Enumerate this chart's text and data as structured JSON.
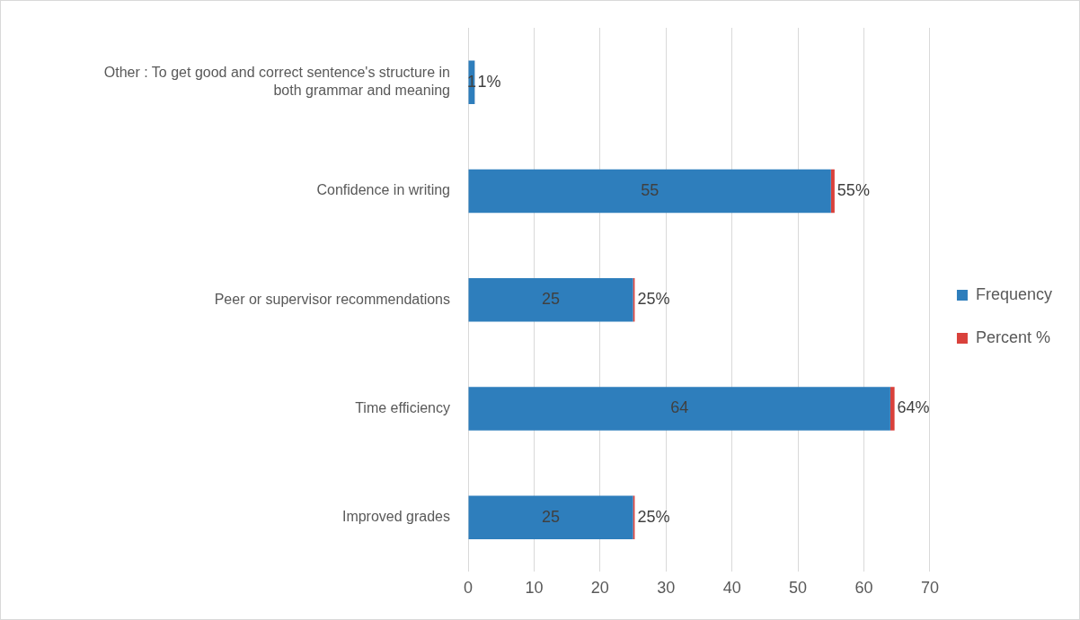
{
  "chart_data": {
    "type": "bar",
    "orientation": "horizontal",
    "stacked": true,
    "categories": [
      "Other : To get good and correct sentence's structure in both grammar and meaning",
      "Confidence in writing",
      "Peer or supervisor recommendations",
      "Time efficiency",
      "Improved grades"
    ],
    "series": [
      {
        "name": "Frequency",
        "color": "#2e7ebc",
        "values": [
          1,
          55,
          25,
          64,
          25
        ],
        "value_labels": [
          "1",
          "55",
          "25",
          "64",
          "25"
        ]
      },
      {
        "name": "Percent %",
        "color": "#d9413b",
        "values": [
          0.01,
          0.55,
          0.25,
          0.64,
          0.25
        ],
        "value_labels": [
          "1%",
          "55%",
          "25%",
          "64%",
          "25%"
        ]
      }
    ],
    "xlim": [
      0,
      70
    ],
    "xticks": [
      0,
      10,
      20,
      30,
      40,
      50,
      60,
      70
    ],
    "grid": "x",
    "legend": "right"
  }
}
